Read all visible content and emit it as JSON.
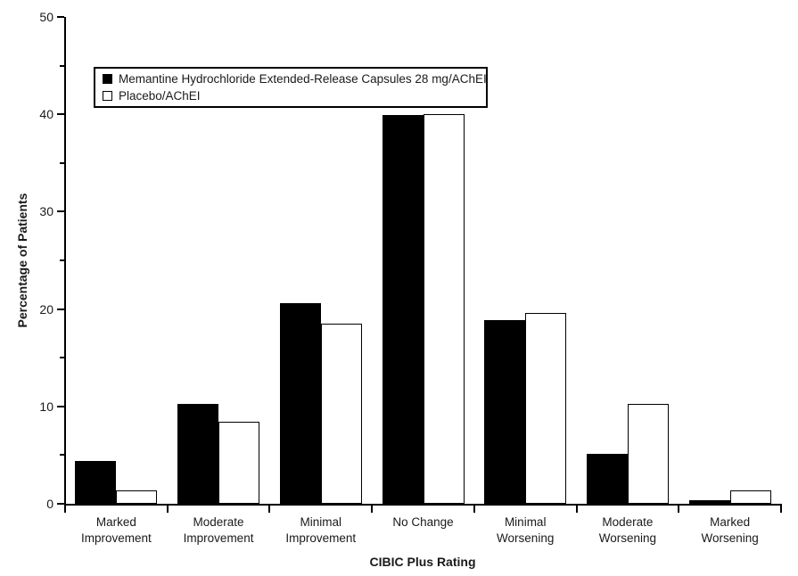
{
  "chart_data": {
    "type": "bar",
    "title": "",
    "xlabel": "CIBIC Plus Rating",
    "ylabel": "Percentage of Patients",
    "ylim": [
      0,
      50
    ],
    "y_major_tick_step": 10,
    "y_minor_tick_step": 5,
    "y_tick_labels": [
      "0",
      "10",
      "20",
      "30",
      "40",
      "50"
    ],
    "grid": false,
    "legend_position": "top-left-inside",
    "categories": [
      "Marked Improvement",
      "Moderate Improvement",
      "Minimal Improvement",
      "No Change",
      "Minimal Worsening",
      "Moderate Worsening",
      "Marked Worsening"
    ],
    "series": [
      {
        "name": "Memantine Hydrochloride Extended-Release Capsules 28 mg/AChEI",
        "slug": "memantine",
        "fill": "#000000",
        "outline": "#000000",
        "values": [
          4.4,
          10.3,
          20.6,
          39.9,
          18.9,
          5.1,
          0.4
        ]
      },
      {
        "name": "Placebo/AChEI",
        "slug": "placebo",
        "fill": "#ffffff",
        "outline": "#000000",
        "values": [
          1.4,
          8.4,
          18.5,
          40.0,
          19.6,
          10.3,
          1.4
        ]
      }
    ],
    "colors": {
      "axis": "#000000",
      "text": "#1a1a1a",
      "background": "#ffffff"
    }
  }
}
